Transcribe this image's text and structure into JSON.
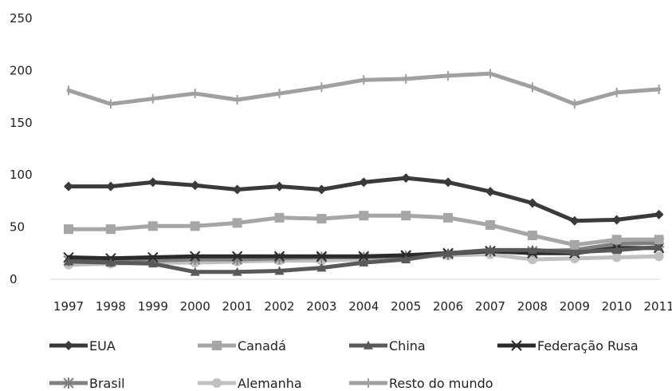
{
  "chart_data": {
    "type": "line",
    "title": "",
    "xlabel": "",
    "ylabel": "",
    "ylim": [
      0,
      250
    ],
    "yticks": [
      0,
      50,
      100,
      150,
      200,
      250
    ],
    "grid": false,
    "legend_position": "bottom",
    "x": [
      "1997",
      "1998",
      "1999",
      "2000",
      "2001",
      "2002",
      "2003",
      "2004",
      "2005",
      "2006",
      "2007",
      "2008",
      "2009",
      "2010",
      "2011"
    ],
    "series": [
      {
        "name": "EUA",
        "color": "#3a3a3a",
        "marker": "diamond",
        "values": [
          89,
          89,
          93,
          90,
          86,
          89,
          86,
          93,
          97,
          93,
          84,
          73,
          56,
          57,
          62
        ]
      },
      {
        "name": "Canadá",
        "color": "#a6a6a6",
        "marker": "square",
        "values": [
          48,
          48,
          51,
          51,
          54,
          59,
          58,
          61,
          61,
          59,
          52,
          42,
          33,
          38,
          38
        ]
      },
      {
        "name": "China",
        "color": "#595959",
        "marker": "triangle",
        "values": [
          17,
          16,
          15,
          7,
          7,
          8,
          11,
          16,
          19,
          25,
          28,
          28,
          26,
          28,
          31
        ]
      },
      {
        "name": "Federação Rusa",
        "color": "#2b2b2b",
        "marker": "x",
        "values": [
          21,
          20,
          21,
          22,
          22,
          22,
          22,
          22,
          23,
          25,
          27,
          25,
          25,
          30,
          30
        ]
      },
      {
        "name": "Brasil",
        "color": "#808080",
        "marker": "star",
        "values": [
          18,
          17,
          18,
          19,
          19,
          20,
          21,
          21,
          22,
          24,
          27,
          27,
          28,
          34,
          35
        ]
      },
      {
        "name": "Alemanha",
        "color": "#c0c0c0",
        "marker": "circle",
        "values": [
          14,
          15,
          16,
          16,
          17,
          18,
          18,
          19,
          21,
          23,
          24,
          19,
          20,
          21,
          22
        ]
      },
      {
        "name": "Resto do mundo",
        "color": "#a0a0a0",
        "marker": "plus",
        "values": [
          181,
          168,
          173,
          178,
          172,
          178,
          184,
          191,
          192,
          195,
          197,
          184,
          168,
          179,
          182
        ]
      }
    ]
  }
}
